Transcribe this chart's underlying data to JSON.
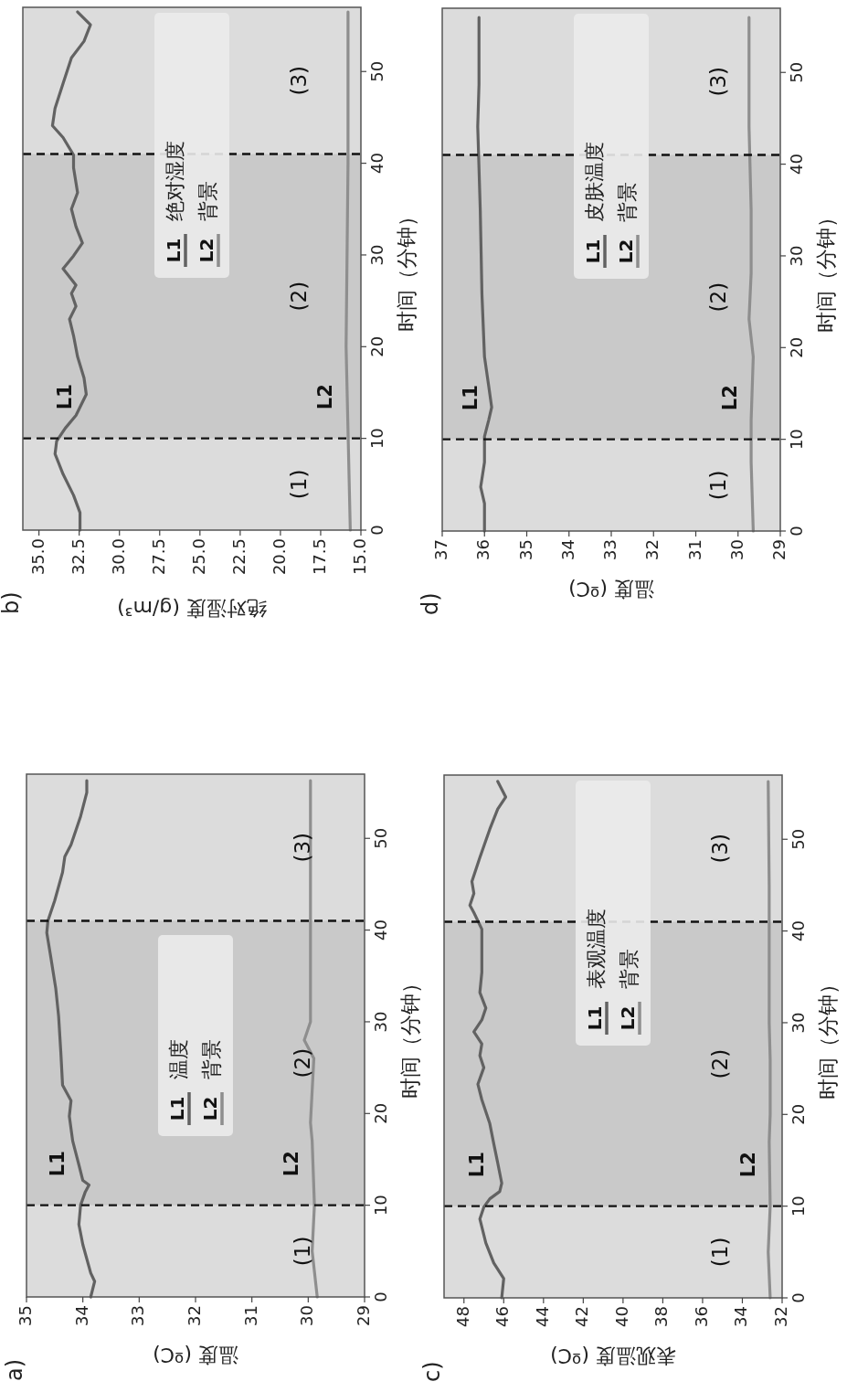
{
  "chart_data": [
    {
      "type": "line",
      "title": "a)",
      "xlabel": "温度 (ºC)",
      "ylabel": "时间（分钟）",
      "ylim": [
        0,
        57
      ],
      "yticks": [
        0,
        10,
        20,
        30,
        40,
        50
      ],
      "xlim": [
        35,
        29
      ],
      "xticks": [
        35,
        34,
        33,
        32,
        31,
        30,
        29
      ],
      "legend": "center",
      "bands": [
        {
          "axis": "y",
          "from": 10,
          "to": 41,
          "color": "#c9c9c9"
        }
      ],
      "ref_lines": [
        {
          "axis": "y",
          "value": 10,
          "color": "#111111",
          "line_style": "dashed"
        },
        {
          "axis": "y",
          "value": 41,
          "color": "#111111",
          "line_style": "dashed"
        }
      ],
      "series": [
        {
          "name": "L1",
          "color": "#626262",
          "values": [
            0,
            1.7,
            2.6,
            5.7,
            7.9,
            10,
            11.4,
            12.2,
            12.7,
            14.4,
            17,
            19.7,
            21.4,
            23.1,
            26.6,
            30.6,
            33.6,
            37.1,
            39.7,
            41,
            43.2,
            46.3,
            48,
            49.3,
            52.4,
            55,
            56.3
          ],
          "x": [
            33.86,
            33.79,
            33.86,
            34.0,
            34.07,
            34.04,
            33.96,
            33.89,
            34.0,
            34.07,
            34.18,
            34.24,
            34.21,
            34.36,
            34.39,
            34.43,
            34.48,
            34.57,
            34.64,
            34.62,
            34.5,
            34.36,
            34.32,
            34.21,
            34.04,
            33.93,
            33.93
          ]
        },
        {
          "name": "L2",
          "color": "#8e8e8e",
          "values": [
            0,
            5,
            10,
            17,
            19,
            26,
            28,
            30,
            40,
            56.3
          ],
          "x": [
            29.84,
            29.93,
            29.89,
            29.93,
            29.96,
            29.9,
            30.07,
            29.96,
            29.96,
            29.96
          ]
        }
      ],
      "annotations": [
        "(1)",
        "(2)",
        "(3)",
        "温度",
        "背景"
      ]
    },
    {
      "type": "line",
      "title": "b)",
      "xlabel": "绝对湿度 (g/m³)",
      "ylabel": "时间（分钟）",
      "ylim": [
        0,
        57
      ],
      "yticks": [
        0,
        10,
        20,
        30,
        40,
        50
      ],
      "xlim": [
        36,
        15
      ],
      "xticks": [
        {
          "value": 35,
          "label": "35.0"
        },
        {
          "value": 32.5,
          "label": "32.5"
        },
        {
          "value": 30,
          "label": "30.0"
        },
        {
          "value": 27.5,
          "label": "27.5"
        },
        {
          "value": 25,
          "label": "25.0"
        },
        {
          "value": 22.5,
          "label": "22.5"
        },
        {
          "value": 20,
          "label": "20.0"
        },
        {
          "value": 17.5,
          "label": "17.5"
        },
        {
          "value": 15,
          "label": "15.0"
        }
      ],
      "legend": "right",
      "bands": [
        {
          "axis": "y",
          "from": 10,
          "to": 41,
          "color": "#c9c9c9"
        }
      ],
      "ref_lines": [
        {
          "axis": "y",
          "value": 10,
          "color": "#111111",
          "line_style": "dashed"
        },
        {
          "axis": "y",
          "value": 41,
          "color": "#111111",
          "line_style": "dashed"
        }
      ],
      "series": [
        {
          "name": "L1",
          "color": "#626262",
          "values": [
            0,
            1.9,
            3.8,
            6.1,
            8.3,
            9.7,
            11.1,
            12.5,
            14.8,
            16.6,
            18.9,
            21.2,
            23,
            24.4,
            25.8,
            26.7,
            28.5,
            29.9,
            31.3,
            33.1,
            35,
            36.8,
            39.5,
            40.9,
            42.8,
            44.1,
            46,
            48.7,
            51.5,
            53.3,
            55.1,
            56.5
          ],
          "x": [
            32.45,
            32.45,
            32.85,
            33.5,
            34.0,
            33.9,
            33.37,
            32.7,
            32.06,
            32.2,
            32.6,
            32.85,
            33.1,
            32.7,
            32.98,
            32.7,
            33.5,
            32.85,
            32.3,
            32.7,
            32.98,
            32.6,
            32.85,
            32.85,
            33.5,
            34.16,
            34.0,
            33.5,
            32.98,
            32.2,
            31.8,
            32.6
          ]
        },
        {
          "name": "L2",
          "color": "#8e8e8e",
          "values": [
            0,
            20,
            40,
            56.5
          ],
          "x": [
            15.66,
            15.92,
            15.8,
            15.8
          ]
        }
      ],
      "annotations": [
        "(1)",
        "(2)",
        "(3)",
        "绝对湿度",
        "背景"
      ]
    },
    {
      "type": "line",
      "title": "c)",
      "xlabel": "表观温度 (ºC)",
      "ylabel": "时间（分钟）",
      "ylim": [
        0,
        57
      ],
      "yticks": [
        0,
        10,
        20,
        30,
        40,
        50
      ],
      "xlim": [
        49,
        32
      ],
      "xticks": [
        48,
        46,
        44,
        42,
        40,
        38,
        36,
        34,
        32
      ],
      "legend": "right",
      "bands": [
        {
          "axis": "y",
          "from": 10,
          "to": 41,
          "color": "#c9c9c9"
        }
      ],
      "ref_lines": [
        {
          "axis": "y",
          "value": 10,
          "color": "#111111",
          "line_style": "dashed"
        },
        {
          "axis": "y",
          "value": 41,
          "color": "#111111",
          "line_style": "dashed"
        }
      ],
      "series": [
        {
          "name": "L1",
          "color": "#626262",
          "values": [
            0,
            2.1,
            3.8,
            6,
            8.6,
            9.9,
            10.8,
            11.6,
            12.5,
            14.7,
            16.8,
            19,
            21.6,
            23.3,
            25.1,
            26.4,
            27.7,
            29,
            30.3,
            31.6,
            33.3,
            35.5,
            38.1,
            40.2,
            42,
            42.8,
            44.1,
            45.4,
            48,
            51.1,
            53.3,
            54.6,
            56.3
          ],
          "x": [
            46.1,
            46.0,
            46.5,
            46.9,
            47.2,
            47.0,
            46.7,
            46.2,
            46.1,
            46.3,
            46.5,
            46.7,
            47.1,
            47.3,
            47.0,
            47.2,
            47.1,
            47.5,
            47.1,
            46.9,
            47.2,
            47.1,
            47.1,
            47.1,
            47.5,
            47.7,
            47.5,
            47.6,
            47.2,
            46.7,
            46.3,
            45.9,
            46.3
          ]
        },
        {
          "name": "L2",
          "color": "#8e8e8e",
          "values": [
            0,
            5,
            10,
            17,
            20,
            26,
            30,
            45,
            56.3
          ],
          "x": [
            32.6,
            32.7,
            32.6,
            32.65,
            32.6,
            32.6,
            32.65,
            32.65,
            32.7
          ]
        }
      ],
      "annotations": [
        "(1)",
        "(2)",
        "(3)",
        "表观温度",
        "背景"
      ]
    },
    {
      "type": "line",
      "title": "d)",
      "xlabel": "温度 (ºC)",
      "ylabel": "时间（分钟）",
      "ylim": [
        0,
        57
      ],
      "yticks": [
        0,
        10,
        20,
        30,
        40,
        50
      ],
      "xlim": [
        37,
        29
      ],
      "xticks": [
        37,
        36,
        35,
        34,
        33,
        32,
        31,
        30,
        29
      ],
      "legend": "right",
      "bands": [
        {
          "axis": "y",
          "from": 10,
          "to": 41,
          "color": "#c9c9c9"
        }
      ],
      "ref_lines": [
        {
          "axis": "y",
          "value": 10,
          "color": "#111111",
          "line_style": "dashed"
        },
        {
          "axis": "y",
          "value": 41,
          "color": "#111111",
          "line_style": "dashed"
        }
      ],
      "series": [
        {
          "name": "L1",
          "color": "#626262",
          "values": [
            0,
            3,
            4.8,
            7.5,
            10.3,
            12.1,
            13.5,
            15.8,
            19,
            25.8,
            35,
            44.1,
            48.7,
            56
          ],
          "x": [
            36.0,
            36.0,
            36.09,
            36.0,
            36.0,
            35.9,
            35.83,
            35.9,
            36.0,
            36.06,
            36.1,
            36.16,
            36.13,
            36.13
          ]
        },
        {
          "name": "L2",
          "color": "#8e8e8e",
          "values": [
            0,
            7.5,
            12.1,
            19,
            23.1,
            28.1,
            35,
            44.1,
            56
          ],
          "x": [
            29.64,
            29.69,
            29.69,
            29.64,
            29.74,
            29.69,
            29.69,
            29.74,
            29.74
          ]
        }
      ],
      "annotations": [
        "(1)",
        "(2)",
        "(3)",
        "皮肤温度",
        "背景"
      ]
    }
  ]
}
